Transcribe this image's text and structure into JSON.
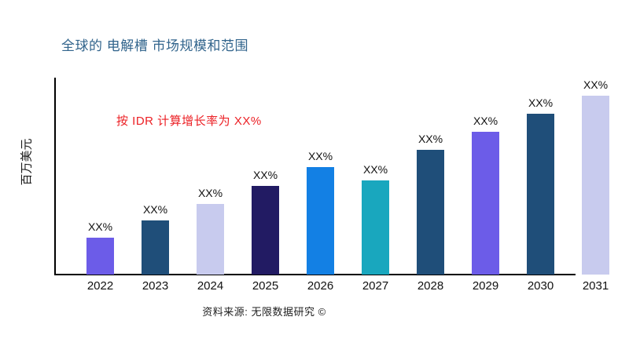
{
  "header": {
    "title": "全球的 电解槽 市场规模和范围",
    "title_color": "#31648C"
  },
  "annotation": {
    "text": "按 IDR 计算增长率为 XX%",
    "color": "#EC2025"
  },
  "y_axis": {
    "label": "百万美元"
  },
  "footer": {
    "source": "资料来源: 无限数据研究 ©"
  },
  "chart_data": {
    "type": "bar",
    "title": "全球的 电解槽 市场规模和范围",
    "xlabel": "",
    "ylabel": "百万美元",
    "categories": [
      "2022",
      "2023",
      "2024",
      "2025",
      "2026",
      "2027",
      "2028",
      "2029",
      "2030",
      "2031"
    ],
    "bar_labels": [
      "XX%",
      "XX%",
      "XX%",
      "XX%",
      "XX%",
      "XX%",
      "XX%",
      "XX%",
      "XX%",
      "XX%"
    ],
    "values_relative": [
      47,
      69,
      90,
      113,
      137,
      120,
      159,
      182,
      205,
      228
    ],
    "bar_colors": [
      "#6C5CE8",
      "#1F4E79",
      "#C8CBEE",
      "#221B63",
      "#1380E4",
      "#19A7BE",
      "#1F4E79",
      "#6C5CE8",
      "#1F4E79",
      "#C8CBEE"
    ],
    "annotation": "按 IDR 计算增长率为 XX%",
    "source": "资料来源: 无限数据研究 ©",
    "grid": false,
    "legend": false,
    "y_ticks_shown": false,
    "axis_color": "#000000"
  }
}
